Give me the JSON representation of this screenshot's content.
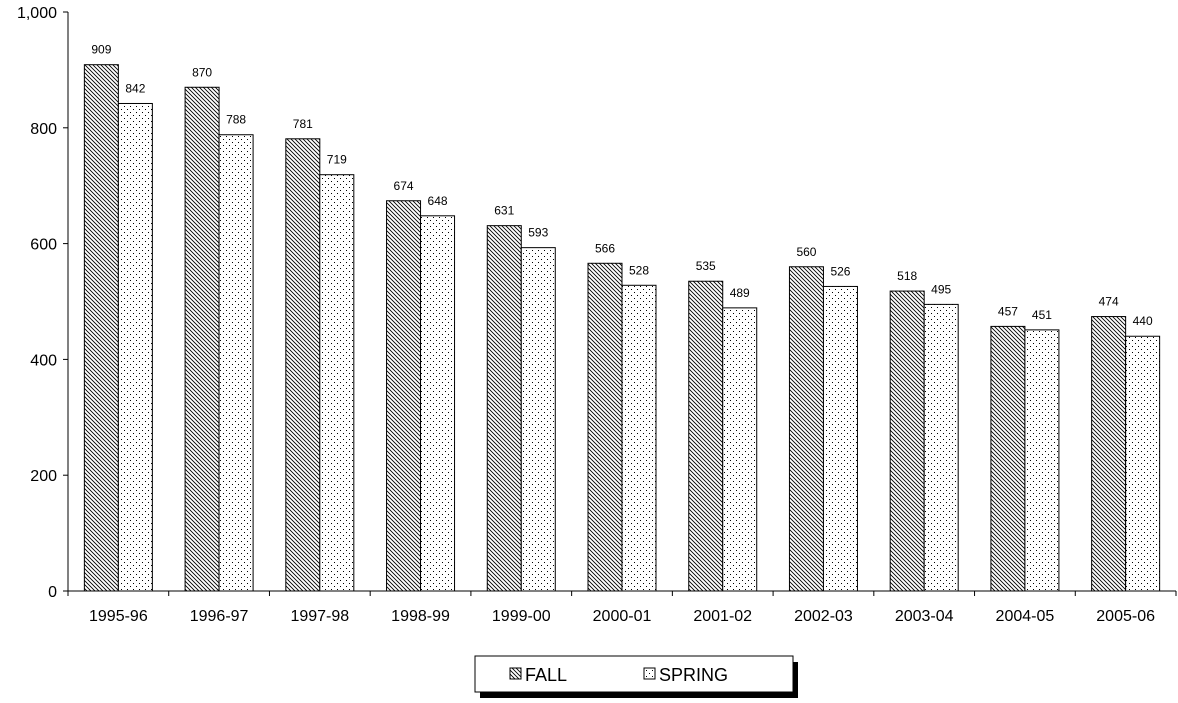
{
  "chart_data": {
    "type": "bar",
    "title": "",
    "xlabel": "",
    "ylabel": "",
    "categories": [
      "1995-96",
      "1996-97",
      "1997-98",
      "1998-99",
      "1999-00",
      "2000-01",
      "2001-02",
      "2002-03",
      "2003-04",
      "2004-05",
      "2005-06"
    ],
    "series": [
      {
        "name": "FALL",
        "values": [
          909,
          870,
          781,
          674,
          631,
          566,
          535,
          560,
          518,
          457,
          474
        ]
      },
      {
        "name": "SPRING",
        "values": [
          842,
          788,
          719,
          648,
          593,
          528,
          489,
          526,
          495,
          451,
          440
        ]
      }
    ],
    "ylim": [
      0,
      1000
    ],
    "yticks": [
      "0",
      "200",
      "400",
      "600",
      "800",
      "1,000"
    ],
    "grid": false,
    "legend": "bottom-center",
    "data_labels": true,
    "patterns": {
      "FALL": "diagonal-hatch",
      "SPRING": "dotted"
    },
    "colors": {
      "bar_fill": "#ffffff",
      "bar_stroke": "#000000",
      "axis": "#000000"
    }
  }
}
